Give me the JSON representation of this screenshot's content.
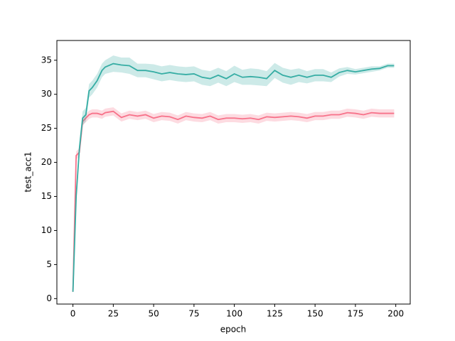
{
  "chart_data": {
    "type": "line",
    "xlabel": "epoch",
    "ylabel": "test_acc1",
    "x": [
      0,
      2,
      4,
      6,
      8,
      10,
      12,
      15,
      18,
      20,
      25,
      30,
      35,
      40,
      45,
      50,
      55,
      60,
      65,
      70,
      75,
      80,
      85,
      90,
      95,
      100,
      105,
      110,
      115,
      120,
      125,
      130,
      135,
      140,
      145,
      150,
      155,
      160,
      165,
      170,
      175,
      180,
      185,
      190,
      195,
      199
    ],
    "xlim": [
      -9.95,
      208.95
    ],
    "xticks": [
      0,
      25,
      50,
      75,
      100,
      125,
      150,
      175,
      200
    ],
    "ylim": [
      -0.8,
      37.9
    ],
    "yticks": [
      0,
      5,
      10,
      15,
      20,
      25,
      30,
      35
    ],
    "series": [
      {
        "color": "#f77189",
        "values": [
          1,
          21,
          21.5,
          26,
          26.5,
          27,
          27.2,
          27.2,
          27,
          27.3,
          27.5,
          26.6,
          27,
          26.8,
          27,
          26.5,
          26.8,
          26.7,
          26.3,
          26.8,
          26.6,
          26.5,
          26.8,
          26.3,
          26.5,
          26.5,
          26.4,
          26.5,
          26.3,
          26.7,
          26.6,
          26.7,
          26.8,
          26.7,
          26.5,
          26.8,
          26.8,
          27,
          27,
          27.3,
          27.2,
          27,
          27.3,
          27.2,
          27.2,
          27.2
        ],
        "lower": [
          1,
          20.4,
          20.9,
          25.4,
          25.9,
          26.4,
          26.6,
          26.6,
          26.4,
          26.7,
          26.9,
          26,
          26.4,
          26.2,
          26.4,
          25.9,
          26.2,
          26.1,
          25.7,
          26.2,
          26,
          25.9,
          26.2,
          25.7,
          25.9,
          25.9,
          25.8,
          25.9,
          25.7,
          26.1,
          26,
          26.1,
          26.2,
          26.1,
          25.9,
          26.2,
          26.2,
          26.4,
          26.4,
          26.7,
          26.6,
          26.4,
          26.7,
          26.6,
          26.6,
          26.6
        ],
        "upper": [
          1,
          21.6,
          22.1,
          26.6,
          27.1,
          27.6,
          27.8,
          27.8,
          27.6,
          27.9,
          28.1,
          27.2,
          27.6,
          27.4,
          27.6,
          27.1,
          27.4,
          27.3,
          26.9,
          27.4,
          27.2,
          27.1,
          27.4,
          26.9,
          27.1,
          27.1,
          27,
          27.1,
          26.9,
          27.3,
          27.2,
          27.3,
          27.4,
          27.3,
          27.1,
          27.4,
          27.4,
          27.6,
          27.6,
          27.9,
          27.8,
          27.6,
          27.9,
          27.8,
          27.8,
          27.8
        ]
      },
      {
        "color": "#36ada4",
        "values": [
          1,
          15,
          22,
          26.5,
          27,
          30.5,
          31,
          32,
          33.5,
          34,
          34.5,
          34.3,
          34.2,
          33.5,
          33.5,
          33.3,
          33,
          33.2,
          33,
          32.9,
          33,
          32.5,
          32.3,
          32.8,
          32.3,
          33,
          32.5,
          32.6,
          32.5,
          32.3,
          33.5,
          32.8,
          32.5,
          32.8,
          32.5,
          32.8,
          32.8,
          32.5,
          33.2,
          33.5,
          33.3,
          33.5,
          33.7,
          33.8,
          34.2,
          34.2
        ],
        "lower": [
          1,
          14,
          21,
          25.5,
          26,
          29.5,
          30,
          31,
          32.5,
          33,
          33.3,
          33.2,
          33,
          32.5,
          32.5,
          32.2,
          31.9,
          32.1,
          31.9,
          31.8,
          31.9,
          31.4,
          31.2,
          31.7,
          31.2,
          31.8,
          31.4,
          31.4,
          31.3,
          31.2,
          32.4,
          31.7,
          31.4,
          31.8,
          31.6,
          31.9,
          31.9,
          31.8,
          32.6,
          33,
          32.9,
          33.1,
          33.3,
          33.5,
          33.9,
          33.9
        ],
        "upper": [
          1,
          16,
          23,
          27.5,
          28,
          31.5,
          32,
          33,
          34.5,
          35,
          35.7,
          35.4,
          35.4,
          34.5,
          34.5,
          34.4,
          34.1,
          34.3,
          34.1,
          34,
          34.1,
          33.6,
          33.4,
          33.9,
          33.4,
          34.2,
          33.6,
          33.8,
          33.7,
          33.4,
          34.6,
          33.9,
          33.6,
          33.8,
          33.4,
          33.7,
          33.7,
          33.2,
          33.8,
          34,
          33.7,
          33.9,
          34.1,
          34.1,
          34.5,
          34.5
        ]
      }
    ]
  }
}
